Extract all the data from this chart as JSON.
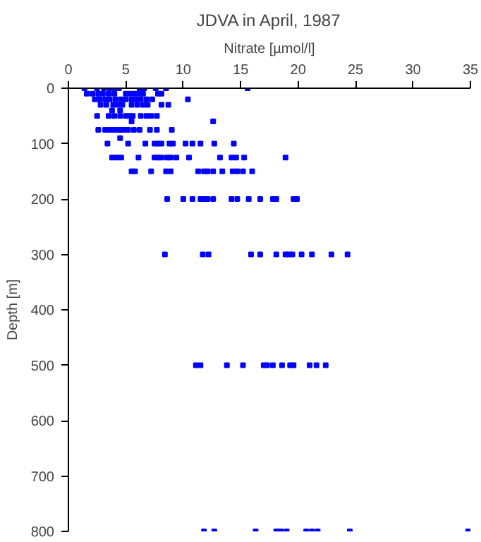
{
  "chart_data": {
    "type": "scatter",
    "title": "JDVA in April, 1987",
    "xlabel": "Nitrate [µmol/l]",
    "ylabel": "Depth [m]",
    "xlim": [
      0,
      35
    ],
    "xticks": [
      0,
      5,
      10,
      15,
      20,
      25,
      30,
      35
    ],
    "ylim": [
      800,
      0
    ],
    "yticks": [
      0,
      100,
      200,
      300,
      400,
      500,
      600,
      700,
      800
    ],
    "marker": "square",
    "grid": false,
    "series": [
      {
        "color": "#0000ff",
        "x": [
          1.4,
          2.5,
          3.1,
          3.6,
          4.0,
          4.4,
          6.2,
          6.6,
          7.6,
          8.5,
          15.6,
          1.6,
          2.1,
          2.6,
          3.0,
          3.5,
          4.0,
          5.0,
          5.4,
          5.8,
          6.2,
          6.5,
          7.8,
          8.1,
          2.3,
          2.7,
          3.2,
          3.6,
          4.1,
          4.6,
          5.0,
          5.5,
          5.9,
          6.3,
          6.8,
          7.3,
          10.4,
          2.8,
          3.3,
          3.9,
          4.3,
          4.7,
          5.5,
          6.0,
          6.5,
          6.9,
          8.1,
          8.7,
          3.8,
          4.5,
          2.5,
          3.5,
          4.0,
          4.5,
          5.0,
          5.3,
          5.6,
          6.3,
          6.8,
          7.2,
          7.7,
          5.5,
          12.6,
          2.6,
          3.2,
          3.6,
          4.0,
          4.4,
          4.8,
          5.2,
          5.7,
          6.2,
          7.1,
          7.7,
          9.0,
          4.5,
          3.4,
          5.2,
          6.7,
          7.5,
          7.8,
          8.1,
          8.8,
          9.1,
          10.2,
          10.8,
          11.5,
          12.7,
          14.4,
          3.8,
          4.2,
          4.6,
          6.1,
          7.5,
          7.8,
          8.1,
          8.6,
          8.9,
          9.4,
          10.5,
          13.2,
          14.2,
          14.6,
          15.3,
          18.9,
          5.5,
          5.8,
          7.2,
          8.5,
          8.9,
          11.3,
          11.8,
          12.1,
          12.6,
          13.4,
          14.3,
          14.7,
          15.2,
          16.0,
          8.6,
          10.0,
          10.8,
          11.5,
          11.8,
          12.1,
          12.6,
          14.2,
          14.7,
          15.7,
          16.7,
          17.8,
          18.1,
          19.6,
          19.9,
          8.4,
          11.7,
          12.2,
          15.9,
          16.7,
          18.1,
          18.9,
          19.2,
          19.5,
          20.3,
          21.2,
          22.9,
          24.3,
          11.1,
          11.5,
          13.8,
          15.2,
          17.0,
          17.3,
          17.8,
          18.6,
          19.3,
          19.6,
          21.0,
          21.6,
          22.4,
          11.8,
          12.7,
          16.3,
          18.1,
          18.5,
          19.0,
          20.7,
          21.2,
          21.7,
          24.5,
          34.8
        ],
        "values": [
          0,
          0,
          0,
          0,
          0,
          0,
          0,
          0,
          0,
          0,
          0,
          10,
          10,
          10,
          10,
          10,
          10,
          10,
          10,
          10,
          10,
          10,
          10,
          10,
          20,
          20,
          20,
          20,
          20,
          20,
          20,
          20,
          20,
          20,
          20,
          20,
          20,
          30,
          30,
          30,
          30,
          30,
          30,
          30,
          30,
          30,
          30,
          30,
          40,
          40,
          50,
          50,
          50,
          50,
          50,
          50,
          50,
          50,
          50,
          50,
          50,
          60,
          60,
          75,
          75,
          75,
          75,
          75,
          75,
          75,
          75,
          75,
          75,
          75,
          75,
          90,
          100,
          100,
          100,
          100,
          100,
          100,
          100,
          100,
          100,
          100,
          100,
          100,
          100,
          125,
          125,
          125,
          125,
          125,
          125,
          125,
          125,
          125,
          125,
          125,
          125,
          125,
          125,
          125,
          125,
          150,
          150,
          150,
          150,
          150,
          150,
          150,
          150,
          150,
          150,
          150,
          150,
          150,
          150,
          200,
          200,
          200,
          200,
          200,
          200,
          200,
          200,
          200,
          200,
          200,
          200,
          200,
          200,
          200,
          300,
          300,
          300,
          300,
          300,
          300,
          300,
          300,
          300,
          300,
          300,
          300,
          300,
          500,
          500,
          500,
          500,
          500,
          500,
          500,
          500,
          500,
          500,
          500,
          500,
          500,
          800,
          800,
          800,
          800,
          800,
          800,
          800,
          800,
          800,
          800,
          800
        ]
      }
    ]
  }
}
